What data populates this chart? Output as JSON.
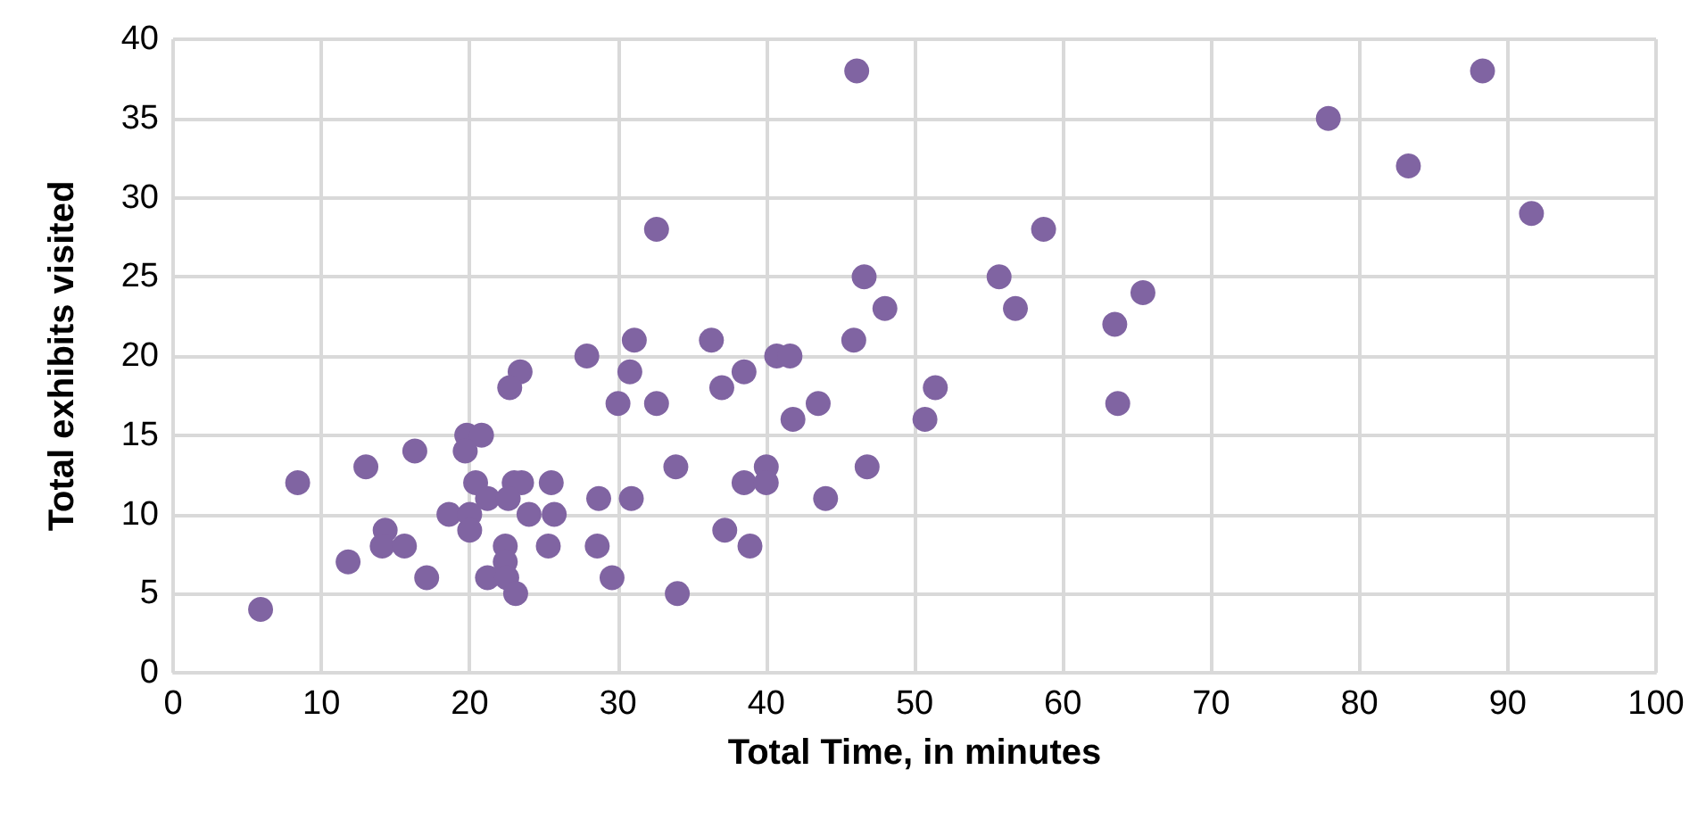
{
  "chart_data": {
    "type": "scatter",
    "xlabel": "Total Time, in minutes",
    "ylabel": "Total exhibits visited",
    "xlim": [
      0,
      100
    ],
    "xticks": [
      0,
      10,
      20,
      30,
      40,
      50,
      60,
      70,
      80,
      90,
      100
    ],
    "ylim": [
      0,
      40
    ],
    "yticks": [
      0,
      5,
      10,
      15,
      20,
      25,
      30,
      35,
      40
    ],
    "grid": true,
    "marker": "circle",
    "series": [
      {
        "color": "#8064a2",
        "x": [
          32.6,
          46.6,
          48.0,
          45.9,
          31.1,
          36.3,
          27.9,
          40.7,
          41.6,
          30.8,
          38.5,
          37.0,
          51.4,
          30.0,
          32.6,
          43.5,
          41.8,
          50.7,
          33.9,
          40.0,
          46.8,
          38.5,
          40.0,
          28.7,
          30.9,
          44.0,
          37.2,
          28.6,
          38.9,
          29.6,
          34.0,
          23.4,
          22.7,
          19.8,
          20.8,
          19.7,
          16.3,
          13.0,
          8.4,
          20.4,
          23.0,
          23.5,
          25.5,
          21.2,
          22.6,
          18.6,
          20.0,
          24.0,
          25.7,
          20.0,
          14.3,
          14.1,
          15.6,
          22.4,
          25.3,
          11.8,
          22.4,
          17.1,
          21.2,
          22.5,
          23.1,
          5.9,
          88.3,
          77.9,
          83.3,
          91.6,
          58.7,
          55.7,
          56.8,
          65.4,
          63.5,
          63.7,
          46.1
        ],
        "values": [
          28,
          25,
          23,
          21,
          21,
          21,
          20,
          20,
          20,
          19,
          19,
          18,
          18,
          17,
          17,
          17,
          16,
          16,
          13,
          13,
          13,
          12,
          12,
          11,
          11,
          11,
          9,
          8,
          8,
          6,
          5,
          19,
          18,
          15,
          15,
          14,
          14,
          13,
          12,
          12,
          12,
          12,
          12,
          11,
          11,
          10,
          10,
          10,
          10,
          9,
          9,
          8,
          8,
          8,
          8,
          7,
          7,
          6,
          6,
          6,
          5,
          4,
          38,
          35,
          32,
          29,
          28,
          25,
          23,
          24,
          22,
          17,
          38
        ]
      }
    ]
  }
}
